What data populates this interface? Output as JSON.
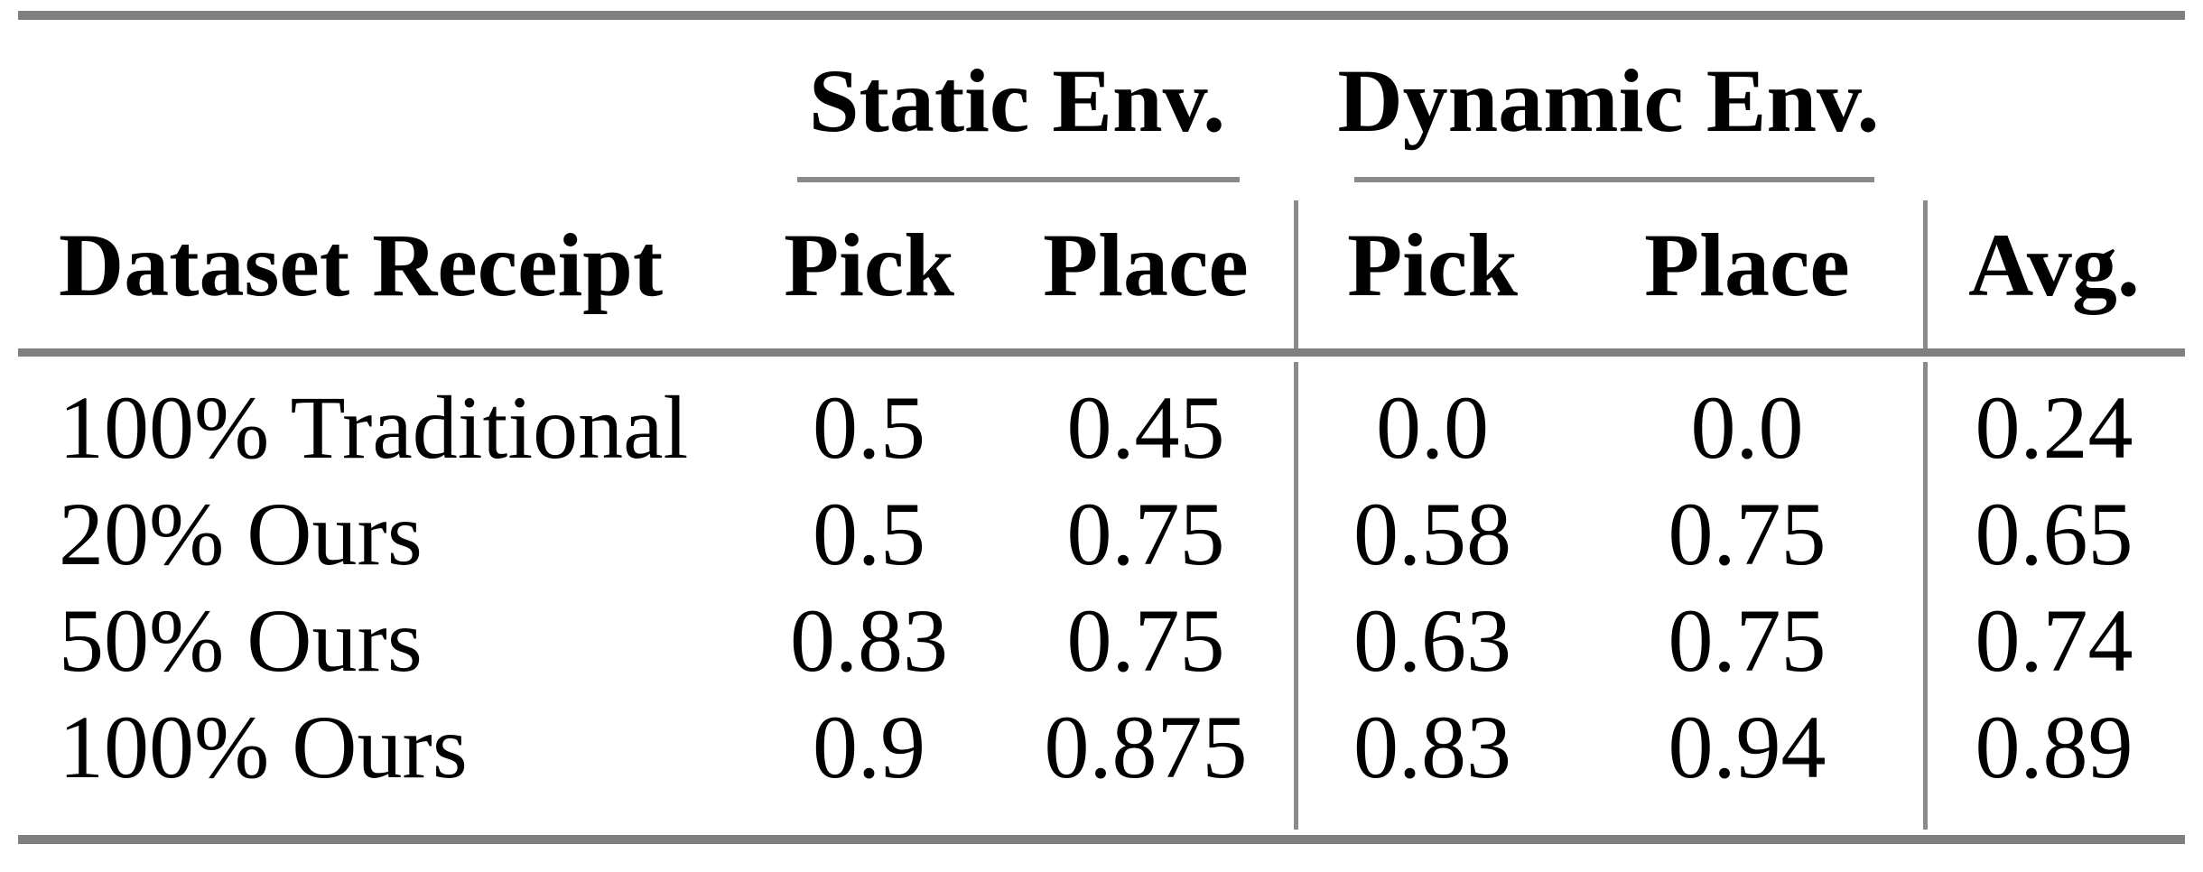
{
  "table": {
    "groups": [
      {
        "label": "Static Env."
      },
      {
        "label": "Dynamic Env."
      }
    ],
    "headers": [
      "Dataset Receipt",
      "Pick",
      "Place",
      "Pick",
      "Place",
      "Avg."
    ],
    "rows": [
      [
        "100% Traditional",
        "0.5",
        "0.45",
        "0.0",
        "0.0",
        "0.24"
      ],
      [
        "20% Ours",
        "0.5",
        "0.75",
        "0.58",
        "0.75",
        "0.65"
      ],
      [
        "50% Ours",
        "0.83",
        "0.75",
        "0.63",
        "0.75",
        "0.74"
      ],
      [
        "100% Ours",
        "0.9",
        "0.875",
        "0.83",
        "0.94",
        "0.89"
      ]
    ]
  },
  "colors": {
    "text": "#000000",
    "rule_gray": "#7f7f7f",
    "thin_rule_gray": "#8a8a8a",
    "background": "#ffffff"
  }
}
